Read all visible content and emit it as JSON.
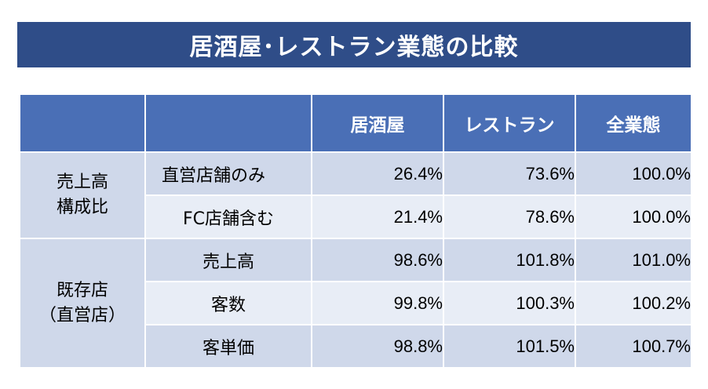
{
  "title": "居酒屋･レストラン業態の比較",
  "columns": [
    "",
    "",
    "居酒屋",
    "レストラン",
    "全業態"
  ],
  "groups": [
    {
      "label_lines": [
        "売上高",
        "構成比"
      ],
      "rows": [
        {
          "label": "直営店舗のみ",
          "values": [
            "26.4%",
            "73.6%",
            "100.0%"
          ]
        },
        {
          "label": "FC店舗含む",
          "values": [
            "21.4%",
            "78.6%",
            "100.0%"
          ]
        }
      ]
    },
    {
      "label_lines": [
        "既存店",
        "（直営店）"
      ],
      "rows": [
        {
          "label": "売上高",
          "values": [
            "98.6%",
            "101.8%",
            "101.0%"
          ]
        },
        {
          "label": "客数",
          "values": [
            "99.8%",
            "100.3%",
            "100.2%"
          ]
        },
        {
          "label": "客単価",
          "values": [
            "98.8%",
            "101.5%",
            "100.7%"
          ]
        }
      ]
    }
  ]
}
